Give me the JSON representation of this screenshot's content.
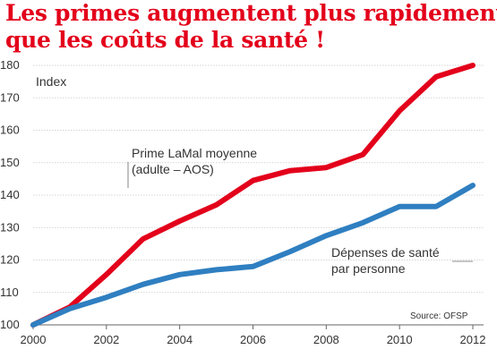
{
  "title_lines": [
    "Les primes augmentent plus rapidement",
    "que les coûts de la santé !"
  ],
  "source": "Source: OFSP",
  "chart_data": {
    "type": "line",
    "title": "Les primes augmentent plus rapidement que les coûts de la santé !",
    "ylabel": "Index",
    "xlabel": "",
    "ylim": [
      100,
      180
    ],
    "xlim": [
      2000,
      2012
    ],
    "yticks": [
      100,
      110,
      120,
      130,
      140,
      150,
      160,
      170,
      180
    ],
    "xticks": [
      2000,
      2002,
      2004,
      2006,
      2008,
      2010,
      2012
    ],
    "grid": "horizontal",
    "x": [
      2000,
      2001,
      2002,
      2003,
      2004,
      2005,
      2006,
      2007,
      2008,
      2009,
      2010,
      2011,
      2012
    ],
    "series": [
      {
        "name": "Prime LaMal moyenne (adulte – AOS)",
        "label_lines": [
          "Prime LaMal moyenne",
          "(adulte – AOS)"
        ],
        "color": "#e3001b",
        "values": [
          100,
          105.5,
          115.5,
          126.5,
          132,
          137,
          144.5,
          147.5,
          148.5,
          152.5,
          166,
          176.5,
          180
        ]
      },
      {
        "name": "Dépenses de santé par personne",
        "label_lines": [
          "Dépenses de santé",
          "par personne"
        ],
        "color": "#2f7fc1",
        "values": [
          100,
          105,
          108.5,
          112.5,
          115.5,
          117,
          118,
          122.5,
          127.5,
          131.5,
          136.5,
          136.5,
          143
        ]
      }
    ]
  }
}
